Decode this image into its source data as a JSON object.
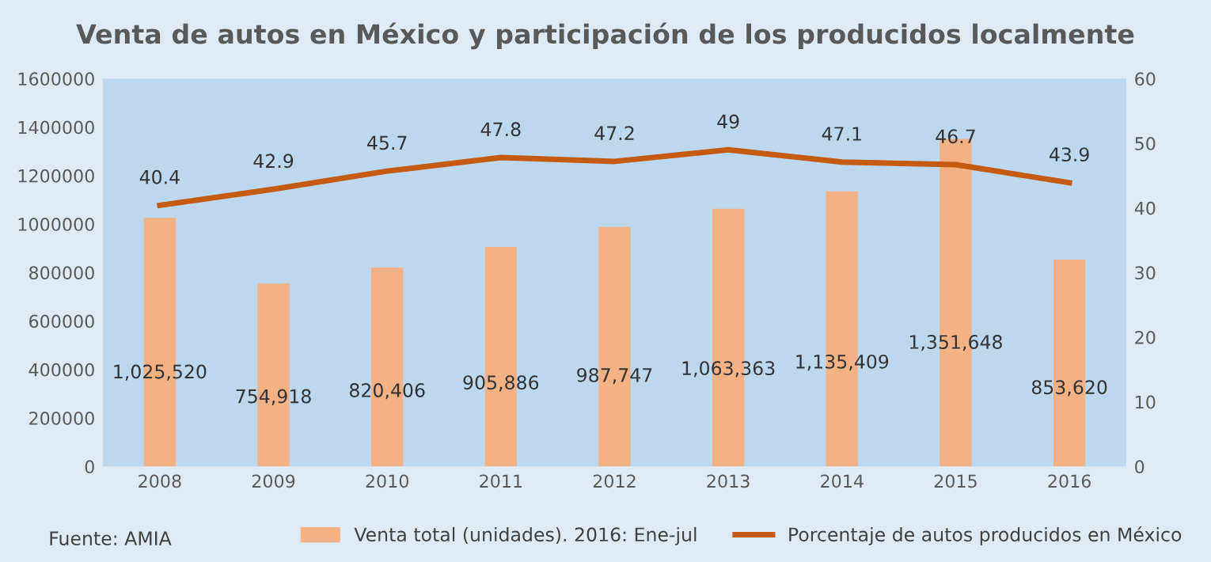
{
  "chart_data": {
    "type": "bar",
    "title": "Venta de autos en México y participación de los producidos localmente",
    "categories": [
      "2008",
      "2009",
      "2010",
      "2011",
      "2012",
      "2013",
      "2014",
      "2015",
      "2016"
    ],
    "series": [
      {
        "name": "Venta total (unidades). 2016: Ene-jul",
        "color": "#f4b183",
        "values": [
          1025520,
          754918,
          820406,
          905886,
          987747,
          1063363,
          1135409,
          1351648,
          853620
        ],
        "value_labels": [
          "1,025,520",
          "754,918",
          "820,406",
          "905,886",
          "987,747",
          "1,063,363",
          "1,135,409",
          "1,351,648",
          "853,620"
        ]
      },
      {
        "name": "Porcentaje de autos producidos en México",
        "type": "line",
        "axis": "y2",
        "color": "#c55a11",
        "values": [
          40.4,
          42.9,
          45.7,
          47.8,
          47.2,
          49,
          47.1,
          46.7,
          43.9
        ],
        "value_labels": [
          "40.4",
          "42.9",
          "45.7",
          "47.8",
          "47.2",
          "49",
          "47.1",
          "46.7",
          "43.9"
        ]
      }
    ],
    "ylim": [
      0,
      1600000
    ],
    "yticks": [
      0,
      200000,
      400000,
      600000,
      800000,
      1000000,
      1200000,
      1400000,
      1600000
    ],
    "y2lim": [
      0,
      60
    ],
    "y2ticks": [
      0,
      10,
      20,
      30,
      40,
      50,
      60
    ],
    "grid": false,
    "legend": "bottom right",
    "marker": "none",
    "annotations": [
      "Fuente: AMIA"
    ]
  }
}
